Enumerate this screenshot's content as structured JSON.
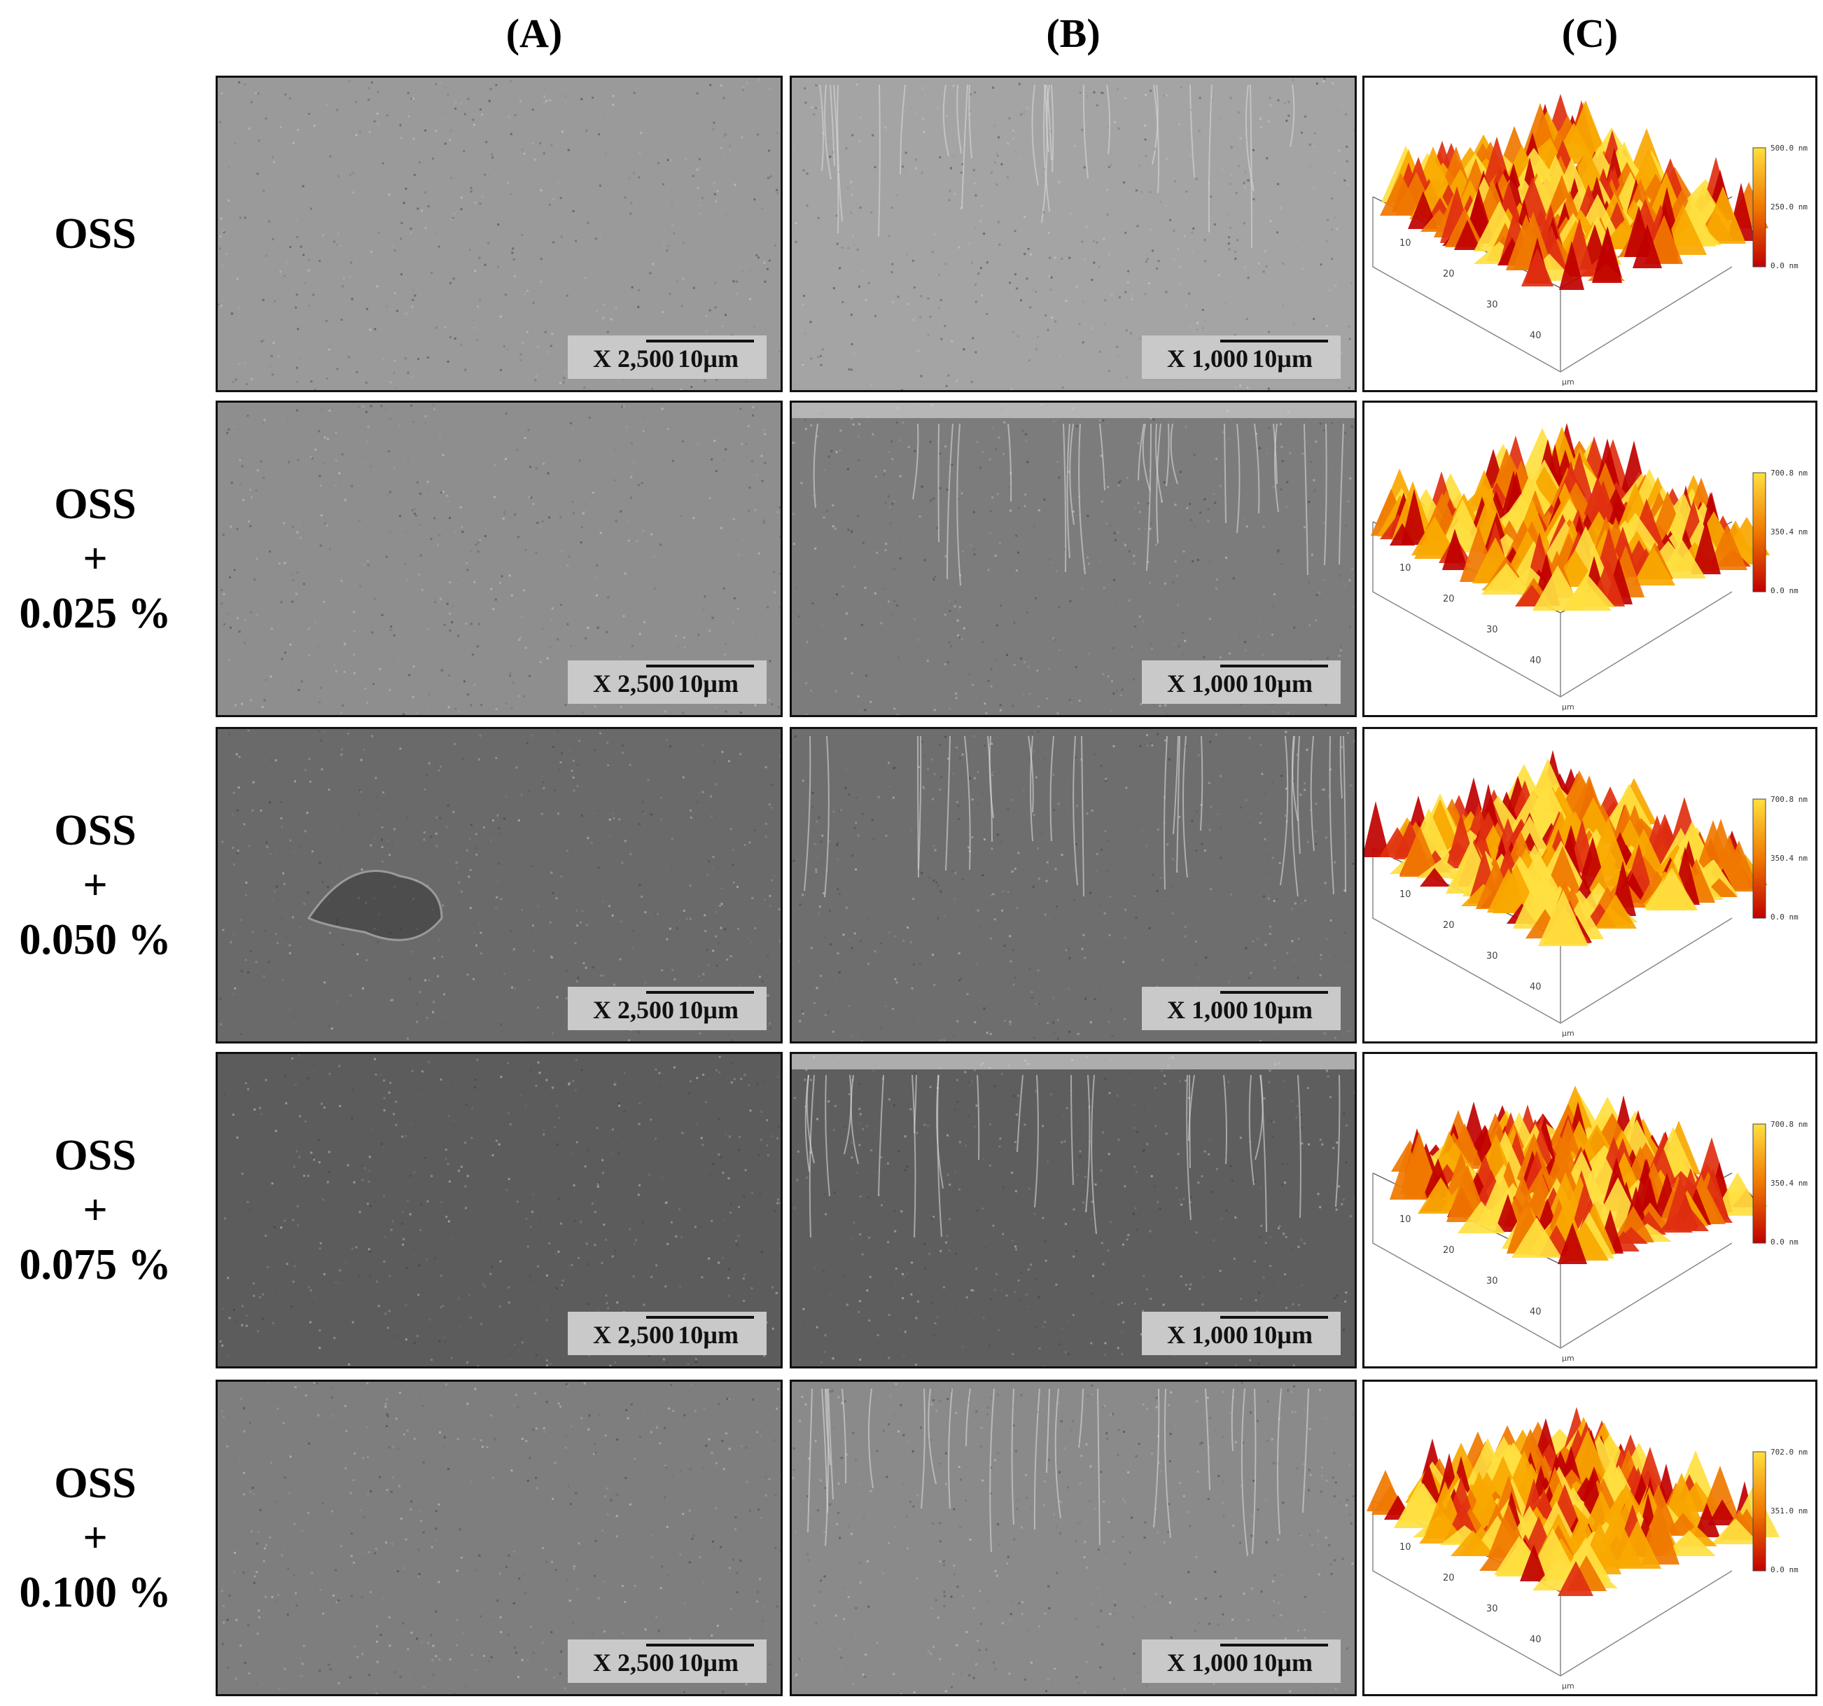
{
  "columns": [
    {
      "label": "(A)"
    },
    {
      "label": "(B)"
    },
    {
      "label": "(C)"
    }
  ],
  "rows": [
    {
      "label_lines": [
        "OSS"
      ],
      "sem_a": {
        "magnification": "X 2,500",
        "scale": "10µm",
        "tone": "#9a9a9a"
      },
      "sem_b": {
        "magnification": "X 1,000",
        "scale": "10µm",
        "tone": "#a4a4a4"
      },
      "afm": {
        "max_label": "500.0 nm",
        "mid_label": "250.0 nm",
        "min_label": "0.0 nm",
        "ticks": [
          "10",
          "20",
          "30",
          "40"
        ],
        "unit": "µm"
      }
    },
    {
      "label_lines": [
        "OSS",
        "+",
        "0.025 %"
      ],
      "sem_a": {
        "magnification": "X 2,500",
        "scale": "10µm",
        "tone": "#8e8e8e"
      },
      "sem_b": {
        "magnification": "X 1,000",
        "scale": "10µm",
        "tone": "#7c7c7c"
      },
      "afm": {
        "max_label": "700.8 nm",
        "mid_label": "350.4 nm",
        "min_label": "0.0 nm",
        "ticks": [
          "10",
          "20",
          "30",
          "40"
        ],
        "unit": "µm"
      }
    },
    {
      "label_lines": [
        "OSS",
        "+",
        "0.050 %"
      ],
      "sem_a": {
        "magnification": "X 2,500",
        "scale": "10µm",
        "tone": "#6a6a6a"
      },
      "sem_b": {
        "magnification": "X 1,000",
        "scale": "10µm",
        "tone": "#6e6e6e"
      },
      "afm": {
        "max_label": "700.8 nm",
        "mid_label": "350.4 nm",
        "min_label": "0.0 nm",
        "ticks": [
          "10",
          "20",
          "30",
          "40"
        ],
        "unit": "µm"
      }
    },
    {
      "label_lines": [
        "OSS",
        "+",
        "0.075 %"
      ],
      "sem_a": {
        "magnification": "X 2,500",
        "scale": "10µm",
        "tone": "#5c5c5c"
      },
      "sem_b": {
        "magnification": "X 1,000",
        "scale": "10µm",
        "tone": "#5e5e5e"
      },
      "afm": {
        "max_label": "700.8 nm",
        "mid_label": "350.4 nm",
        "min_label": "0.0 nm",
        "ticks": [
          "10",
          "20",
          "30",
          "40"
        ],
        "unit": "µm"
      }
    },
    {
      "label_lines": [
        "OSS",
        "+",
        "0.100 %"
      ],
      "sem_a": {
        "magnification": "X 2,500",
        "scale": "10µm",
        "tone": "#7e7e7e"
      },
      "sem_b": {
        "magnification": "X 1,000",
        "scale": "10µm",
        "tone": "#8a8a8a"
      },
      "afm": {
        "max_label": "702.0 nm",
        "mid_label": "351.0 nm",
        "min_label": "0.0 nm",
        "ticks": [
          "10",
          "20",
          "30",
          "40"
        ],
        "unit": "µm"
      }
    }
  ],
  "colors": {
    "afm_low": "#c00000",
    "afm_mid": "#f07800",
    "afm_high": "#ffe040"
  }
}
